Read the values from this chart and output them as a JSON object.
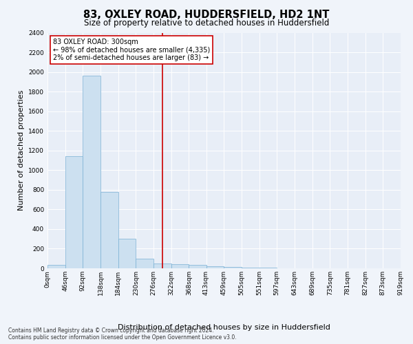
{
  "title": "83, OXLEY ROAD, HUDDERSFIELD, HD2 1NT",
  "subtitle": "Size of property relative to detached houses in Huddersfield",
  "xlabel": "Distribution of detached houses by size in Huddersfield",
  "ylabel": "Number of detached properties",
  "footer_line1": "Contains HM Land Registry data © Crown copyright and database right 2024.",
  "footer_line2": "Contains public sector information licensed under the Open Government Licence v3.0.",
  "annotation_line1": "83 OXLEY ROAD: 300sqm",
  "annotation_line2": "← 98% of detached houses are smaller (4,335)",
  "annotation_line3": "2% of semi-detached houses are larger (83) →",
  "bar_color": "#cce0f0",
  "bar_edge_color": "#7ab0d4",
  "vline_color": "#cc0000",
  "bin_edges": [
    0,
    46,
    92,
    138,
    184,
    230,
    276,
    322,
    368,
    413,
    459,
    505,
    551,
    597,
    643,
    689,
    735,
    781,
    827,
    873,
    919
  ],
  "bin_counts": [
    35,
    1140,
    1960,
    780,
    300,
    100,
    50,
    40,
    35,
    20,
    15,
    10,
    5,
    3,
    2,
    1,
    1,
    1,
    1,
    1
  ],
  "tick_labels": [
    "0sqm",
    "46sqm",
    "92sqm",
    "138sqm",
    "184sqm",
    "230sqm",
    "276sqm",
    "322sqm",
    "368sqm",
    "413sqm",
    "459sqm",
    "505sqm",
    "551sqm",
    "597sqm",
    "643sqm",
    "689sqm",
    "735sqm",
    "781sqm",
    "827sqm",
    "873sqm",
    "919sqm"
  ],
  "ylim": [
    0,
    2400
  ],
  "yticks": [
    0,
    200,
    400,
    600,
    800,
    1000,
    1200,
    1400,
    1600,
    1800,
    2000,
    2200,
    2400
  ],
  "fig_bg_color": "#f0f4fa",
  "axes_bg_color": "#e8eef7",
  "title_fontsize": 10.5,
  "subtitle_fontsize": 8.5,
  "tick_fontsize": 6.5,
  "ylabel_fontsize": 8,
  "xlabel_fontsize": 8,
  "annotation_fontsize": 7,
  "footer_fontsize": 5.5,
  "annotation_box_color": "#ffffff",
  "annotation_box_edge": "#cc0000",
  "vline_x": 300
}
